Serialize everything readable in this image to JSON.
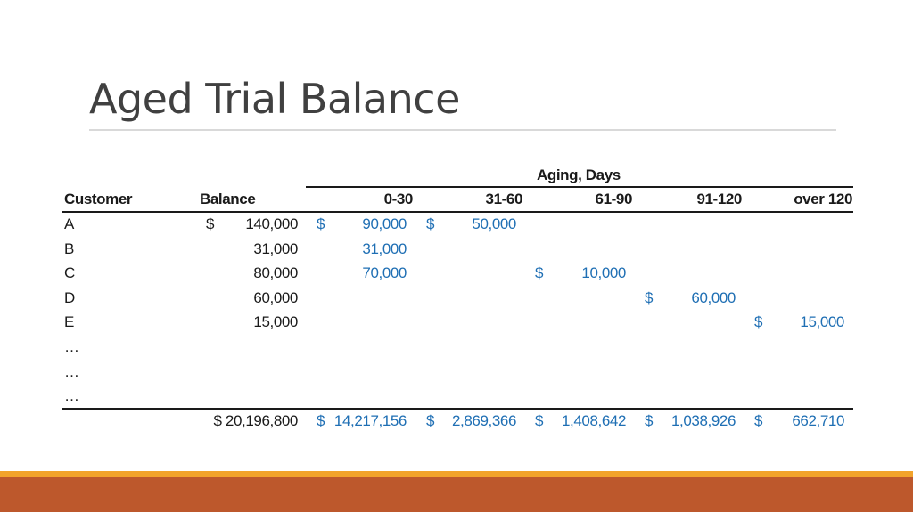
{
  "title": "Aged Trial Balance",
  "header": {
    "aging_label": "Aging, Days",
    "customer": "Customer",
    "balance": "Balance",
    "buckets": [
      "0-30",
      "31-60",
      "61-90",
      "91-120",
      "over 120"
    ]
  },
  "rows": [
    {
      "customer": "A",
      "balance_sign": "$",
      "balance": "140,000",
      "cells": [
        {
          "sign": "$",
          "value": "90,000"
        },
        {
          "sign": "$",
          "value": "50,000"
        },
        {
          "sign": "",
          "value": ""
        },
        {
          "sign": "",
          "value": ""
        },
        {
          "sign": "",
          "value": ""
        }
      ]
    },
    {
      "customer": "B",
      "balance_sign": "",
      "balance": "31,000",
      "cells": [
        {
          "sign": "",
          "value": "31,000"
        },
        {
          "sign": "",
          "value": ""
        },
        {
          "sign": "",
          "value": ""
        },
        {
          "sign": "",
          "value": ""
        },
        {
          "sign": "",
          "value": ""
        }
      ]
    },
    {
      "customer": "C",
      "balance_sign": "",
      "balance": "80,000",
      "cells": [
        {
          "sign": "",
          "value": "70,000"
        },
        {
          "sign": "",
          "value": ""
        },
        {
          "sign": "$",
          "value": "10,000"
        },
        {
          "sign": "",
          "value": ""
        },
        {
          "sign": "",
          "value": ""
        }
      ]
    },
    {
      "customer": "D",
      "balance_sign": "",
      "balance": "60,000",
      "cells": [
        {
          "sign": "",
          "value": ""
        },
        {
          "sign": "",
          "value": ""
        },
        {
          "sign": "",
          "value": ""
        },
        {
          "sign": "$",
          "value": "60,000"
        },
        {
          "sign": "",
          "value": ""
        }
      ]
    },
    {
      "customer": "E",
      "balance_sign": "",
      "balance": "15,000",
      "cells": [
        {
          "sign": "",
          "value": ""
        },
        {
          "sign": "",
          "value": ""
        },
        {
          "sign": "",
          "value": ""
        },
        {
          "sign": "",
          "value": ""
        },
        {
          "sign": "$",
          "value": "15,000"
        }
      ]
    },
    {
      "customer": "…",
      "balance_sign": "",
      "balance": "",
      "cells": [
        {
          "sign": "",
          "value": ""
        },
        {
          "sign": "",
          "value": ""
        },
        {
          "sign": "",
          "value": ""
        },
        {
          "sign": "",
          "value": ""
        },
        {
          "sign": "",
          "value": ""
        }
      ]
    },
    {
      "customer": "…",
      "balance_sign": "",
      "balance": "",
      "cells": [
        {
          "sign": "",
          "value": ""
        },
        {
          "sign": "",
          "value": ""
        },
        {
          "sign": "",
          "value": ""
        },
        {
          "sign": "",
          "value": ""
        },
        {
          "sign": "",
          "value": ""
        }
      ]
    },
    {
      "customer": "…",
      "balance_sign": "",
      "balance": "",
      "cells": [
        {
          "sign": "",
          "value": ""
        },
        {
          "sign": "",
          "value": ""
        },
        {
          "sign": "",
          "value": ""
        },
        {
          "sign": "",
          "value": ""
        },
        {
          "sign": "",
          "value": ""
        }
      ]
    }
  ],
  "totals": {
    "balance": "$ 20,196,800",
    "cells": [
      {
        "sign": "$",
        "value": "14,217,156"
      },
      {
        "sign": "$",
        "value": "2,869,366"
      },
      {
        "sign": "$",
        "value": "1,408,642"
      },
      {
        "sign": "$",
        "value": "1,038,926"
      },
      {
        "sign": "$",
        "value": "662,710"
      }
    ]
  },
  "colors": {
    "title": "#404040",
    "aging_values": "#1f6fb4",
    "footer_bar": "#bd582c",
    "footer_accent": "#f2a32b"
  }
}
